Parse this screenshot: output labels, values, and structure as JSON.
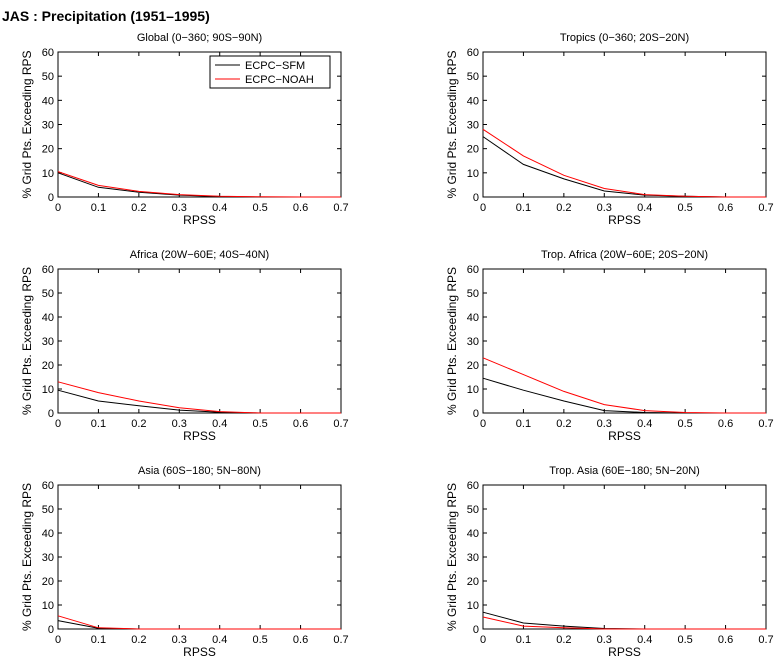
{
  "suptitle": "JAS : Precipitation (1951–1995)",
  "legend": {
    "entries": [
      {
        "label": "ECPC−SFM",
        "color": "#000000"
      },
      {
        "label": "ECPC−NOAH",
        "color": "#ff0000"
      }
    ]
  },
  "chart_data": [
    {
      "type": "line",
      "title": "Global (0−360; 90S−90N)",
      "xlabel": "RPSS",
      "ylabel": "% Grid Pts. Exceeding RPS",
      "xlim": [
        0,
        0.7
      ],
      "ylim": [
        0,
        60
      ],
      "xticks": [
        "0",
        "0.1",
        "0.2",
        "0.3",
        "0.4",
        "0.5",
        "0.6",
        "0.7"
      ],
      "yticks": [
        "0",
        "10",
        "20",
        "30",
        "40",
        "50",
        "60"
      ],
      "grid": false,
      "x": [
        0,
        0.1,
        0.2,
        0.3,
        0.4,
        0.5,
        0.6,
        0.7
      ],
      "series": [
        {
          "name": "ECPC−SFM",
          "color": "#000000",
          "values": [
            10,
            4,
            2,
            0.8,
            0.2,
            0,
            0,
            0
          ]
        },
        {
          "name": "ECPC−NOAH",
          "color": "#ff0000",
          "values": [
            10.5,
            4.8,
            2.3,
            1,
            0.3,
            0.1,
            0,
            0
          ]
        }
      ]
    },
    {
      "type": "line",
      "title": "Tropics (0−360; 20S−20N)",
      "xlabel": "RPSS",
      "ylabel": "% Grid Pts. Exceeding RPS",
      "xlim": [
        0,
        0.7
      ],
      "ylim": [
        0,
        60
      ],
      "xticks": [
        "0",
        "0.1",
        "0.2",
        "0.3",
        "0.4",
        "0.5",
        "0.6",
        "0.7"
      ],
      "yticks": [
        "0",
        "10",
        "20",
        "30",
        "40",
        "50",
        "60"
      ],
      "grid": false,
      "x": [
        0,
        0.1,
        0.2,
        0.3,
        0.4,
        0.5,
        0.6,
        0.7
      ],
      "series": [
        {
          "name": "ECPC−SFM",
          "color": "#000000",
          "values": [
            25,
            13.5,
            7.5,
            2.5,
            0.8,
            0.3,
            0,
            0
          ]
        },
        {
          "name": "ECPC−NOAH",
          "color": "#ff0000",
          "values": [
            28,
            17,
            9,
            3.5,
            1,
            0.3,
            0,
            0
          ]
        }
      ]
    },
    {
      "type": "line",
      "title": "Africa (20W−60E; 40S−40N)",
      "xlabel": "RPSS",
      "ylabel": "% Grid Pts. Exceeding RPS",
      "xlim": [
        0,
        0.7
      ],
      "ylim": [
        0,
        60
      ],
      "xticks": [
        "0",
        "0.1",
        "0.2",
        "0.3",
        "0.4",
        "0.5",
        "0.6",
        "0.7"
      ],
      "yticks": [
        "0",
        "10",
        "20",
        "30",
        "40",
        "50",
        "60"
      ],
      "grid": false,
      "x": [
        0,
        0.1,
        0.2,
        0.3,
        0.4,
        0.5,
        0.6,
        0.7
      ],
      "series": [
        {
          "name": "ECPC−SFM",
          "color": "#000000",
          "values": [
            9.5,
            5,
            3,
            1.2,
            0.3,
            0,
            0,
            0
          ]
        },
        {
          "name": "ECPC−NOAH",
          "color": "#ff0000",
          "values": [
            13,
            8.5,
            5,
            2.2,
            0.6,
            0,
            0,
            0
          ]
        }
      ]
    },
    {
      "type": "line",
      "title": "Trop. Africa (20W−60E; 20S−20N)",
      "xlabel": "RPSS",
      "ylabel": "% Grid Pts. Exceeding RPS",
      "xlim": [
        0,
        0.7
      ],
      "ylim": [
        0,
        60
      ],
      "xticks": [
        "0",
        "0.1",
        "0.2",
        "0.3",
        "0.4",
        "0.5",
        "0.6",
        "0.7"
      ],
      "yticks": [
        "0",
        "10",
        "20",
        "30",
        "40",
        "50",
        "60"
      ],
      "grid": false,
      "x": [
        0,
        0.1,
        0.2,
        0.3,
        0.4,
        0.5,
        0.6,
        0.7
      ],
      "series": [
        {
          "name": "ECPC−SFM",
          "color": "#000000",
          "values": [
            14.5,
            9.5,
            5,
            1,
            0.2,
            0,
            0,
            0
          ]
        },
        {
          "name": "ECPC−NOAH",
          "color": "#ff0000",
          "values": [
            23,
            16,
            9,
            3.5,
            1,
            0.2,
            0,
            0
          ]
        }
      ]
    },
    {
      "type": "line",
      "title": "Asia (60S−180; 5N−80N)",
      "xlabel": "RPSS",
      "ylabel": "% Grid Pts. Exceeding RPS",
      "xlim": [
        0,
        0.7
      ],
      "ylim": [
        0,
        60
      ],
      "xticks": [
        "0",
        "0.1",
        "0.2",
        "0.3",
        "0.4",
        "0.5",
        "0.6",
        "0.7"
      ],
      "yticks": [
        "0",
        "10",
        "20",
        "30",
        "40",
        "50",
        "60"
      ],
      "grid": false,
      "x": [
        0,
        0.1,
        0.2,
        0.3,
        0.4,
        0.5,
        0.6,
        0.7
      ],
      "series": [
        {
          "name": "ECPC−SFM",
          "color": "#000000",
          "values": [
            3.5,
            0.3,
            0,
            0,
            0,
            0,
            0,
            0
          ]
        },
        {
          "name": "ECPC−NOAH",
          "color": "#ff0000",
          "values": [
            5.5,
            0.5,
            0,
            0,
            0,
            0,
            0,
            0
          ]
        }
      ]
    },
    {
      "type": "line",
      "title": "Trop. Asia (60E−180; 5N−20N)",
      "xlabel": "RPSS",
      "ylabel": "% Grid Pts. Exceeding RPS",
      "xlim": [
        0,
        0.7
      ],
      "ylim": [
        0,
        60
      ],
      "xticks": [
        "0",
        "0.1",
        "0.2",
        "0.3",
        "0.4",
        "0.5",
        "0.6",
        "0.7"
      ],
      "yticks": [
        "0",
        "10",
        "20",
        "30",
        "40",
        "50",
        "60"
      ],
      "grid": false,
      "x": [
        0,
        0.1,
        0.2,
        0.3,
        0.4,
        0.5,
        0.6,
        0.7
      ],
      "series": [
        {
          "name": "ECPC−SFM",
          "color": "#000000",
          "values": [
            7,
            2.5,
            1.2,
            0.2,
            0,
            0,
            0,
            0
          ]
        },
        {
          "name": "ECPC−NOAH",
          "color": "#ff0000",
          "values": [
            5,
            1.2,
            0.5,
            0,
            0,
            0,
            0,
            0
          ]
        }
      ]
    }
  ]
}
